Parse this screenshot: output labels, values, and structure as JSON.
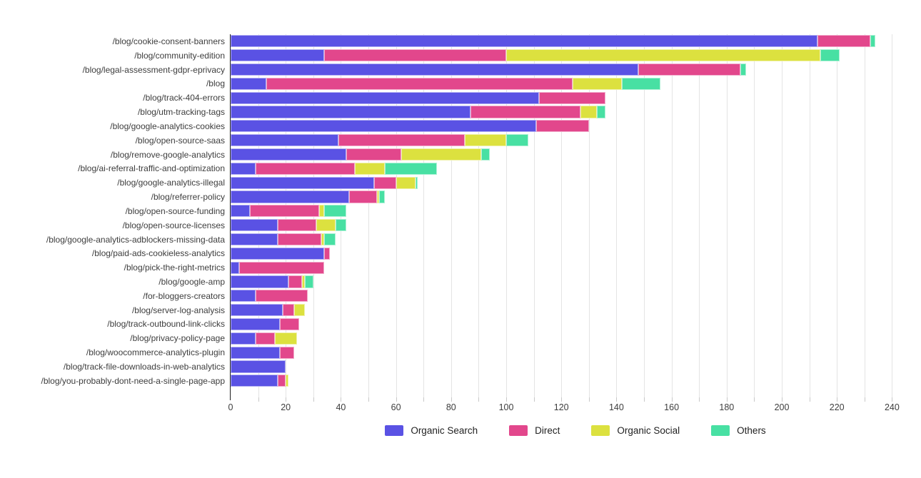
{
  "chart_data": {
    "type": "bar",
    "orientation": "horizontal",
    "stacked": true,
    "title": "",
    "xlabel": "",
    "ylabel": "",
    "xlim": [
      0,
      250
    ],
    "grid_step": 10,
    "grid_max": 240,
    "xticks": [
      0,
      20,
      40,
      60,
      80,
      100,
      120,
      140,
      160,
      180,
      200,
      220,
      240
    ],
    "legend_position": "bottom",
    "categories": [
      "/blog/cookie-consent-banners",
      "/blog/community-edition",
      "/blog/legal-assessment-gdpr-eprivacy",
      "/blog",
      "/blog/track-404-errors",
      "/blog/utm-tracking-tags",
      "/blog/google-analytics-cookies",
      "/blog/open-source-saas",
      "/blog/remove-google-analytics",
      "/blog/ai-referral-traffic-and-optimization",
      "/blog/google-analytics-illegal",
      "/blog/referrer-policy",
      "/blog/open-source-funding",
      "/blog/open-source-licenses",
      "/blog/google-analytics-adblockers-missing-data",
      "/blog/paid-ads-cookieless-analytics",
      "/blog/pick-the-right-metrics",
      "/blog/google-amp",
      "/for-bloggers-creators",
      "/blog/server-log-analysis",
      "/blog/track-outbound-link-clicks",
      "/blog/privacy-policy-page",
      "/blog/woocommerce-analytics-plugin",
      "/blog/track-file-downloads-in-web-analytics",
      "/blog/you-probably-dont-need-a-single-page-app"
    ],
    "series": [
      {
        "name": "Organic Search",
        "color": "#5A52E4",
        "values": [
          213,
          34,
          148,
          13,
          112,
          87,
          111,
          39,
          42,
          9,
          52,
          43,
          7,
          17,
          17,
          34,
          3,
          21,
          9,
          19,
          18,
          9,
          18,
          20,
          17
        ]
      },
      {
        "name": "Direct",
        "color": "#E2478C",
        "values": [
          19,
          66,
          37,
          111,
          24,
          40,
          19,
          46,
          20,
          36,
          8,
          10,
          25,
          14,
          16,
          2,
          31,
          5,
          19,
          4,
          7,
          7,
          5,
          0,
          3
        ]
      },
      {
        "name": "Organic Social",
        "color": "#DCE13F",
        "values": [
          0,
          114,
          0,
          18,
          0,
          6,
          0,
          15,
          29,
          11,
          7,
          1,
          2,
          7,
          1,
          0,
          0,
          1,
          0,
          4,
          0,
          8,
          0,
          0,
          1
        ]
      },
      {
        "name": "Others",
        "color": "#48E0A3",
        "values": [
          2,
          7,
          2,
          14,
          0,
          3,
          0,
          8,
          3,
          19,
          1,
          2,
          8,
          4,
          4,
          0,
          0,
          3,
          0,
          0,
          0,
          0,
          0,
          0,
          0
        ]
      }
    ]
  },
  "colors": {
    "grid": "#e4e4e4",
    "axis": "#1f1f1f",
    "tick": "#c8c8c8",
    "label_text": "#3d3d3d",
    "legend_text": "#222222"
  }
}
